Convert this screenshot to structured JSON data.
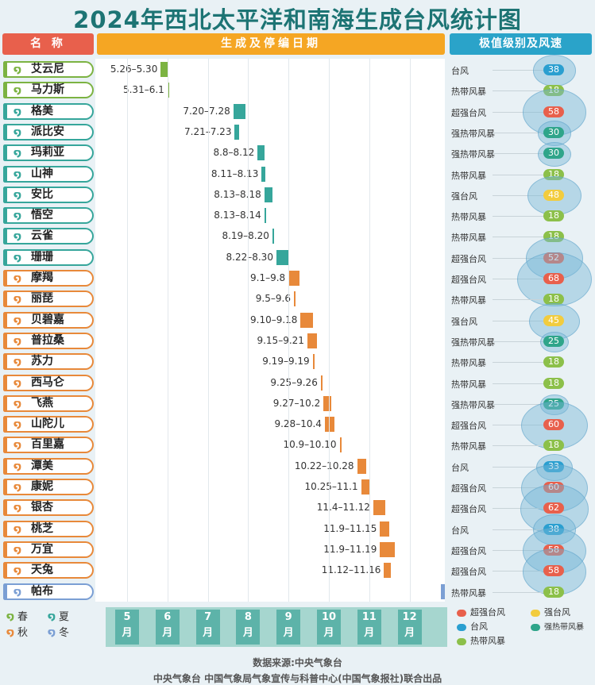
{
  "title": "2024年西北太平洋和南海生成台风统计图",
  "headers": {
    "name": "名 称",
    "dates": "生成及停编日期",
    "level": "极值级别及风速"
  },
  "colors": {
    "season": {
      "春": "#7cb342",
      "夏": "#36a69b",
      "秋": "#e8893a",
      "冬": "#7b9fd4"
    },
    "level": {
      "超强台风": "#e8604c",
      "强台风": "#f2cc3e",
      "台风": "#2a9fd0",
      "强热带风暴": "#2fa58a",
      "热带风暴": "#8cc04a"
    }
  },
  "chart_data": {
    "type": "table",
    "x_axis": "month 5-12",
    "rows": [
      {
        "name": "艾云尼",
        "season": "春",
        "dates": "5.26–5.30",
        "start": [
          5,
          26
        ],
        "end": [
          5,
          30
        ],
        "level": "台风",
        "speed": "38"
      },
      {
        "name": "马力斯",
        "season": "春",
        "dates": "5.31–6.1",
        "start": [
          5,
          31
        ],
        "end": [
          6,
          1
        ],
        "level": "热带风暴",
        "speed": "18"
      },
      {
        "name": "格美",
        "season": "夏",
        "dates": "7.20–7.28",
        "start": [
          7,
          20
        ],
        "end": [
          7,
          28
        ],
        "level": "超强台风",
        "speed": "58"
      },
      {
        "name": "派比安",
        "season": "夏",
        "dates": "7.21–7.23",
        "start": [
          7,
          21
        ],
        "end": [
          7,
          23
        ],
        "level": "强热带风暴",
        "speed": "30"
      },
      {
        "name": "玛莉亚",
        "season": "夏",
        "dates": "8.8–8.12",
        "start": [
          8,
          8
        ],
        "end": [
          8,
          12
        ],
        "level": "强热带风暴",
        "speed": "30"
      },
      {
        "name": "山神",
        "season": "夏",
        "dates": "8.11–8.13",
        "start": [
          8,
          11
        ],
        "end": [
          8,
          13
        ],
        "level": "热带风暴",
        "speed": "18"
      },
      {
        "name": "安比",
        "season": "夏",
        "dates": "8.13–8.18",
        "start": [
          8,
          13
        ],
        "end": [
          8,
          18
        ],
        "level": "强台风",
        "speed": "48"
      },
      {
        "name": "悟空",
        "season": "夏",
        "dates": "8.13–8.14",
        "start": [
          8,
          13
        ],
        "end": [
          8,
          14
        ],
        "level": "热带风暴",
        "speed": "18"
      },
      {
        "name": "云雀",
        "season": "夏",
        "dates": "8.19–8.20",
        "start": [
          8,
          19
        ],
        "end": [
          8,
          20
        ],
        "level": "热带风暴",
        "speed": "18"
      },
      {
        "name": "珊珊",
        "season": "夏",
        "dates": "8.22–8.30",
        "start": [
          8,
          22
        ],
        "end": [
          8,
          30
        ],
        "level": "超强台风",
        "speed": "52"
      },
      {
        "name": "摩羯",
        "season": "秋",
        "dates": "9.1–9.8",
        "start": [
          9,
          1
        ],
        "end": [
          9,
          8
        ],
        "level": "超强台风",
        "speed": "68"
      },
      {
        "name": "丽琵",
        "season": "秋",
        "dates": "9.5–9.6",
        "start": [
          9,
          5
        ],
        "end": [
          9,
          6
        ],
        "level": "热带风暴",
        "speed": "18"
      },
      {
        "name": "贝碧嘉",
        "season": "秋",
        "dates": "9.10–9.18",
        "start": [
          9,
          10
        ],
        "end": [
          9,
          18
        ],
        "level": "强台风",
        "speed": "45"
      },
      {
        "name": "普拉桑",
        "season": "秋",
        "dates": "9.15–9.21",
        "start": [
          9,
          15
        ],
        "end": [
          9,
          21
        ],
        "level": "强热带风暴",
        "speed": "25"
      },
      {
        "name": "苏力",
        "season": "秋",
        "dates": "9.19–9.19",
        "start": [
          9,
          19
        ],
        "end": [
          9,
          19
        ],
        "level": "热带风暴",
        "speed": "18"
      },
      {
        "name": "西马仑",
        "season": "秋",
        "dates": "9.25–9.26",
        "start": [
          9,
          25
        ],
        "end": [
          9,
          26
        ],
        "level": "热带风暴",
        "speed": "18"
      },
      {
        "name": "飞燕",
        "season": "秋",
        "dates": "9.27–10.2",
        "start": [
          9,
          27
        ],
        "end": [
          10,
          2
        ],
        "level": "强热带风暴",
        "speed": "25"
      },
      {
        "name": "山陀儿",
        "season": "秋",
        "dates": "9.28–10.4",
        "start": [
          9,
          28
        ],
        "end": [
          10,
          4
        ],
        "level": "超强台风",
        "speed": "60"
      },
      {
        "name": "百里嘉",
        "season": "秋",
        "dates": "10.9–10.10",
        "start": [
          10,
          9
        ],
        "end": [
          10,
          10
        ],
        "level": "热带风暴",
        "speed": "18"
      },
      {
        "name": "潭美",
        "season": "秋",
        "dates": "10.22–10.28",
        "start": [
          10,
          22
        ],
        "end": [
          10,
          28
        ],
        "level": "台风",
        "speed": "33"
      },
      {
        "name": "康妮",
        "season": "秋",
        "dates": "10.25–11.1",
        "start": [
          10,
          25
        ],
        "end": [
          11,
          1
        ],
        "level": "超强台风",
        "speed": "60"
      },
      {
        "name": "银杏",
        "season": "秋",
        "dates": "11.4–11.12",
        "start": [
          11,
          4
        ],
        "end": [
          11,
          12
        ],
        "level": "超强台风",
        "speed": "62"
      },
      {
        "name": "桃芝",
        "season": "秋",
        "dates": "11.9–11.15",
        "start": [
          11,
          9
        ],
        "end": [
          11,
          15
        ],
        "level": "台风",
        "speed": "38"
      },
      {
        "name": "万宜",
        "season": "秋",
        "dates": "11.9–11.19",
        "start": [
          11,
          9
        ],
        "end": [
          11,
          19
        ],
        "level": "超强台风",
        "speed": "58"
      },
      {
        "name": "天兔",
        "season": "秋",
        "dates": "11.12–11.16",
        "start": [
          11,
          12
        ],
        "end": [
          11,
          16
        ],
        "level": "超强台风",
        "speed": "58"
      },
      {
        "name": "帕布",
        "season": "冬",
        "dates": "",
        "start": [
          12,
          24
        ],
        "end": [
          12,
          26
        ],
        "level": "热带风暴",
        "speed": "18"
      }
    ],
    "months": [
      "5\n月",
      "6\n月",
      "7\n月",
      "8\n月",
      "9\n月",
      "10\n月",
      "11\n月",
      "12\n月"
    ]
  },
  "season_legend": [
    "春",
    "夏",
    "秋",
    "冬"
  ],
  "level_legend": [
    "超强台风",
    "强台风",
    "台风",
    "强热带风暴",
    "热带风暴"
  ],
  "footer": {
    "source": "数据来源:中央气象台",
    "credit": "中央气象台 中国气象局气象宣传与科普中心(中国气象报社)联合出品"
  }
}
